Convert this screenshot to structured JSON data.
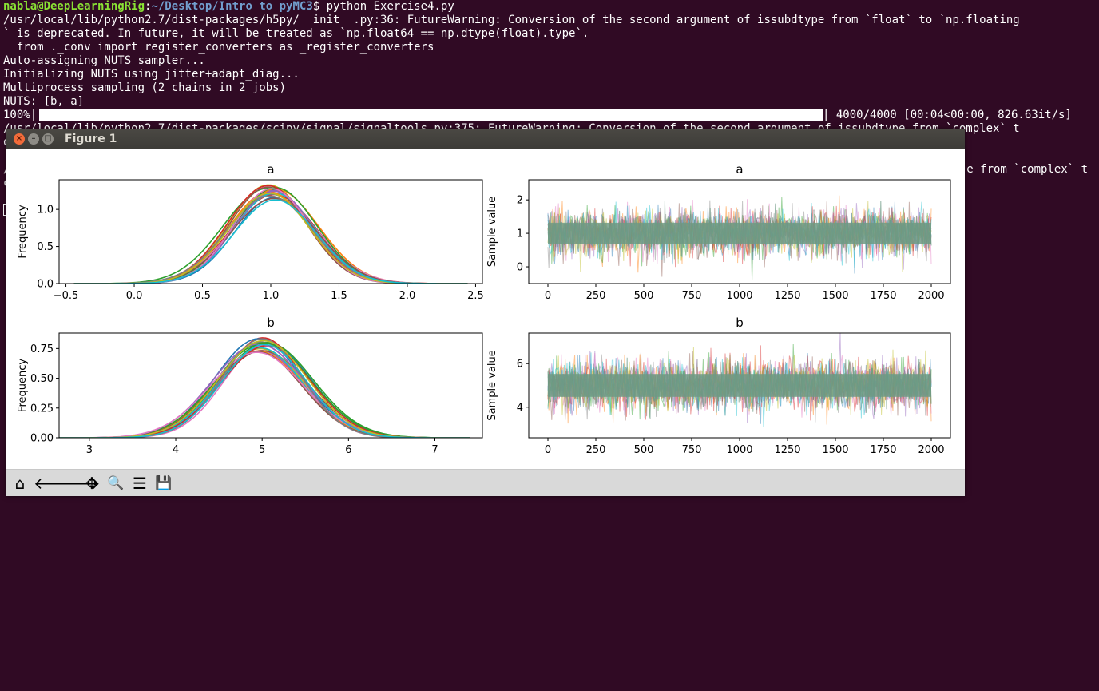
{
  "terminal": {
    "prompt_user": "nabla@DeepLearningRig",
    "prompt_sep": ":",
    "prompt_path": "~/Desktop/Intro to pyMC3",
    "prompt_symbol": "$ ",
    "command": "python Exercise4.py",
    "lines": [
      "/usr/local/lib/python2.7/dist-packages/h5py/__init__.py:36: FutureWarning: Conversion of the second argument of issubdtype from `float` to `np.floating",
      "` is deprecated. In future, it will be treated as `np.float64 == np.dtype(float).type`.",
      "  from ._conv import register_converters as _register_converters",
      "Auto-assigning NUTS sampler...",
      "Initializing NUTS using jitter+adapt_diag...",
      "Multiprocess sampling (2 chains in 2 jobs)",
      "NUTS: [b, a]"
    ],
    "progress_percent": "100%|",
    "progress_fraction": 1.0,
    "progress_stats": "| 4000/4000 [00:04<00:00, 826.63it/s]",
    "partial_line_1": "/usr/local/lib/python2.7/dist-packages/scipy/signal/signaltools.py:375: FutureWarning: Conversion of the second argument of issubdtype from `complex` t",
    "partial_line_2": "o",
    "right_fragment_1": "e from `complex` t",
    "right_fragment_2": "e from `complex` t",
    "left_fragment": "/",
    "left_fragment_2": "c"
  },
  "window": {
    "title": "Figure 1",
    "close_glyph": "×",
    "min_glyph": "–",
    "max_glyph": "□"
  },
  "toolbar": {
    "buttons": [
      {
        "name": "home",
        "glyph": "⌂"
      },
      {
        "name": "back",
        "glyph": "🡐"
      },
      {
        "name": "forward",
        "glyph": "🡒"
      },
      {
        "name": "pan",
        "glyph": "✥"
      },
      {
        "name": "zoom",
        "glyph": "🔍"
      },
      {
        "name": "configure-subplots",
        "glyph": "☰"
      },
      {
        "name": "save",
        "glyph": "💾"
      }
    ]
  },
  "chart_data": [
    {
      "type": "line",
      "title": "a",
      "ylabel": "Frequency",
      "xlabel": "",
      "xlim": [
        -0.55,
        2.55
      ],
      "ylim": [
        0,
        1.4
      ],
      "xticks": [
        "−0.5",
        "0.0",
        "0.5",
        "1.0",
        "1.5",
        "2.0",
        "2.5"
      ],
      "xtick_values": [
        -0.5,
        0.0,
        0.5,
        1.0,
        1.5,
        2.0,
        2.5
      ],
      "yticks": [
        "0.0",
        "0.5",
        "1.0"
      ],
      "ytick_values": [
        0.0,
        0.5,
        1.0
      ],
      "series_kind": "kde",
      "center": 1.0,
      "spread": 0.3,
      "peak": 1.25,
      "num_series": 20
    },
    {
      "type": "line",
      "title": "a",
      "ylabel": "Sample value",
      "xlabel": "",
      "xlim": [
        -100,
        2100
      ],
      "ylim": [
        -0.5,
        2.6
      ],
      "xticks": [
        "0",
        "250",
        "500",
        "750",
        "1000",
        "1250",
        "1500",
        "1750",
        "2000"
      ],
      "xtick_values": [
        0,
        250,
        500,
        750,
        1000,
        1250,
        1500,
        1750,
        2000
      ],
      "yticks": [
        "0",
        "1",
        "2"
      ],
      "ytick_values": [
        0,
        1,
        2
      ],
      "series_kind": "trace",
      "mean": 1.0,
      "std": 0.3,
      "n_samples": 2000
    },
    {
      "type": "line",
      "title": "b",
      "ylabel": "Frequency",
      "xlabel": "",
      "xlim": [
        2.65,
        7.55
      ],
      "ylim": [
        0,
        0.88
      ],
      "xticks": [
        "3",
        "4",
        "5",
        "6",
        "7"
      ],
      "xtick_values": [
        3,
        4,
        5,
        6,
        7
      ],
      "yticks": [
        "0.00",
        "0.25",
        "0.50",
        "0.75"
      ],
      "ytick_values": [
        0.0,
        0.25,
        0.5,
        0.75
      ],
      "series_kind": "kde",
      "center": 5.0,
      "spread": 0.5,
      "peak": 0.78,
      "num_series": 20
    },
    {
      "type": "line",
      "title": "b",
      "ylabel": "Sample value",
      "xlabel": "",
      "xlim": [
        -100,
        2100
      ],
      "ylim": [
        2.6,
        7.4
      ],
      "xticks": [
        "0",
        "250",
        "500",
        "750",
        "1000",
        "1250",
        "1500",
        "1750",
        "2000"
      ],
      "xtick_values": [
        0,
        250,
        500,
        750,
        1000,
        1250,
        1500,
        1750,
        2000
      ],
      "yticks": [
        "4",
        "6"
      ],
      "ytick_values": [
        4,
        6
      ],
      "series_kind": "trace",
      "mean": 5.0,
      "std": 0.5,
      "n_samples": 2000
    }
  ],
  "colors": {
    "series": [
      "#1f77b4",
      "#ff7f0e",
      "#2ca02c",
      "#d62728",
      "#9467bd",
      "#8c564b",
      "#e377c2",
      "#7f7f7f",
      "#bcbd22",
      "#17becf"
    ],
    "trace_overlay": "#6e9a84",
    "terminal_bg": "#300a24"
  }
}
